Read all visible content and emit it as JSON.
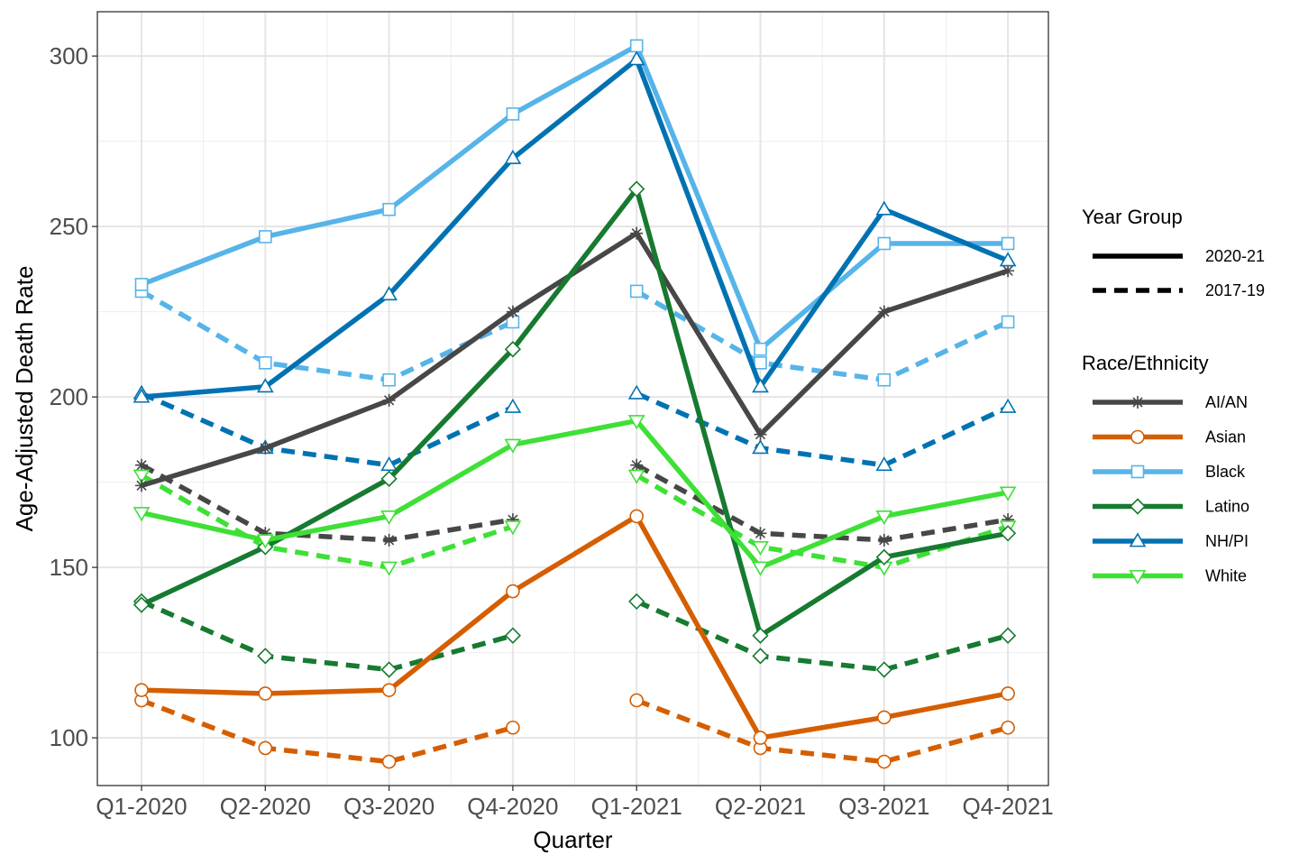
{
  "chart_data": {
    "type": "line",
    "title": "",
    "xlabel": "Quarter",
    "ylabel": "Age-Adjusted Death Rate",
    "categories": [
      "Q1-2020",
      "Q2-2020",
      "Q3-2020",
      "Q4-2020",
      "Q1-2021",
      "Q2-2021",
      "Q3-2021",
      "Q4-2021"
    ],
    "ylim": [
      86,
      313
    ],
    "yticks": [
      100,
      150,
      200,
      250,
      300
    ],
    "grid": true,
    "legend_position": "right",
    "legend": {
      "linetype_title": "Year Group",
      "linetypes": [
        {
          "name": "2020-21",
          "style": "solid"
        },
        {
          "name": "2017-19",
          "style": "dashed"
        }
      ],
      "group_title": "Race/Ethnicity"
    },
    "groups": [
      {
        "name": "AI/AN",
        "color": "#474747",
        "shape": "asterisk",
        "values_2020_21": [
          174,
          185,
          199,
          225,
          248,
          189,
          225,
          237
        ],
        "values_2017_19": [
          180,
          160,
          158,
          164,
          180,
          160,
          158,
          164
        ]
      },
      {
        "name": "Asian",
        "color": "#d55e00",
        "shape": "circle",
        "values_2020_21": [
          114,
          113,
          114,
          143,
          165,
          100,
          106,
          113
        ],
        "values_2017_19": [
          111,
          97,
          93,
          103,
          111,
          97,
          93,
          103
        ]
      },
      {
        "name": "Black",
        "color": "#56b4e9",
        "shape": "square",
        "values_2020_21": [
          233,
          247,
          255,
          283,
          303,
          214,
          245,
          245
        ],
        "values_2017_19": [
          231,
          210,
          205,
          222,
          231,
          210,
          205,
          222
        ]
      },
      {
        "name": "Latino",
        "color": "#167a30",
        "shape": "diamond",
        "values_2020_21": [
          139,
          156,
          176,
          214,
          261,
          130,
          153,
          160
        ],
        "values_2017_19": [
          140,
          124,
          120,
          130,
          140,
          124,
          120,
          130
        ]
      },
      {
        "name": "NH/PI",
        "color": "#0072b2",
        "shape": "triangle-up",
        "values_2020_21": [
          200,
          203,
          230,
          270,
          299,
          203,
          255,
          240
        ],
        "values_2017_19": [
          201,
          185,
          180,
          197,
          201,
          185,
          180,
          197
        ]
      },
      {
        "name": "White",
        "color": "#3ee036",
        "shape": "triangle-down",
        "values_2020_21": [
          166,
          158,
          165,
          186,
          193,
          150,
          165,
          172
        ],
        "values_2017_19": [
          177,
          156,
          150,
          162,
          177,
          156,
          150,
          162
        ]
      }
    ]
  }
}
